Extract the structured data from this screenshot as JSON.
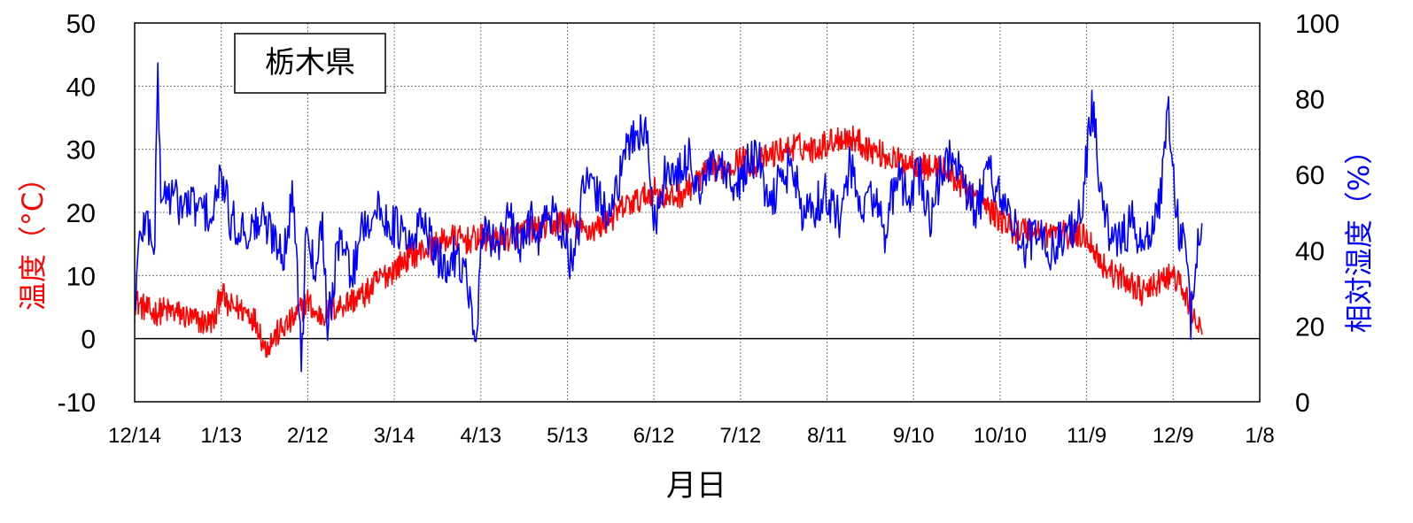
{
  "chart_data": {
    "type": "line",
    "title": "栃木県",
    "xlabel": "月日",
    "ylabel_left": "温度（°C）",
    "ylabel_right": "相対湿度（%）",
    "x_ticks": [
      "12/14",
      "1/13",
      "2/12",
      "3/14",
      "4/13",
      "5/13",
      "6/12",
      "7/12",
      "8/11",
      "9/10",
      "10/10",
      "11/9",
      "12/9",
      "1/8"
    ],
    "y_left_ticks": [
      "-10",
      "0",
      "10",
      "20",
      "30",
      "40",
      "50"
    ],
    "y_right_ticks": [
      "0",
      "20",
      "40",
      "60",
      "80",
      "100"
    ],
    "ylim_left": [
      -10,
      50
    ],
    "ylim_right": [
      0,
      100
    ],
    "xlim_days": [
      0,
      390
    ],
    "grid": true,
    "colors": {
      "temperature": "#ff0000",
      "humidity": "#0000ff",
      "zero_line": "#000000"
    },
    "series": [
      {
        "name": "温度",
        "axis": "left",
        "x_days": [
          0,
          3,
          6,
          10,
          15,
          20,
          25,
          28,
          30,
          32,
          35,
          40,
          43,
          45,
          50,
          55,
          60,
          63,
          66,
          70,
          75,
          80,
          85,
          90,
          95,
          100,
          105,
          110,
          115,
          120,
          125,
          130,
          135,
          140,
          145,
          150,
          155,
          160,
          165,
          170,
          175,
          180,
          185,
          190,
          195,
          200,
          205,
          210,
          215,
          220,
          225,
          230,
          235,
          240,
          245,
          250,
          255,
          260,
          265,
          270,
          275,
          280,
          285,
          290,
          295,
          300,
          305,
          310,
          315,
          320,
          325,
          330,
          335,
          340,
          345,
          350,
          355,
          360,
          363,
          366,
          368,
          370
        ],
        "values": [
          6,
          5,
          4,
          4.5,
          4,
          3,
          2.5,
          3,
          8,
          5,
          5,
          4,
          2,
          -1.5,
          1,
          3,
          6,
          3.5,
          4,
          5,
          6,
          7,
          9.5,
          11,
          13,
          14,
          15,
          16,
          15.5,
          16,
          15.5,
          16,
          17,
          17.5,
          18,
          19,
          17,
          17.5,
          19,
          21,
          22,
          23.5,
          22,
          23,
          25,
          27,
          27,
          28.5,
          27.5,
          29,
          30,
          30.5,
          30,
          31,
          32,
          31.5,
          30,
          29,
          28,
          28,
          27,
          27,
          25,
          23,
          21,
          19,
          17,
          17.5,
          16.5,
          17,
          16,
          16.5,
          12,
          10,
          9,
          7,
          9,
          10,
          8,
          5,
          3,
          1
        ]
      },
      {
        "name": "相対湿度",
        "axis": "right",
        "x_days": [
          0,
          2,
          4,
          7,
          8,
          9,
          12,
          16,
          20,
          25,
          27,
          30,
          33,
          36,
          40,
          44,
          48,
          52,
          55,
          58,
          59,
          60,
          62,
          65,
          67,
          70,
          73,
          75,
          78,
          80,
          84,
          88,
          92,
          96,
          100,
          104,
          108,
          112,
          116,
          118,
          120,
          122,
          126,
          130,
          134,
          138,
          140,
          144,
          148,
          152,
          156,
          160,
          164,
          168,
          172,
          176,
          178,
          180,
          182,
          184,
          188,
          192,
          196,
          200,
          204,
          208,
          212,
          216,
          220,
          224,
          228,
          232,
          236,
          240,
          244,
          248,
          252,
          256,
          260,
          264,
          268,
          272,
          276,
          280,
          284,
          288,
          292,
          296,
          300,
          304,
          308,
          312,
          316,
          320,
          324,
          328,
          332,
          336,
          340,
          344,
          346,
          348,
          350,
          352,
          354,
          356,
          358,
          360,
          362,
          364,
          366,
          368,
          370
        ],
        "values": [
          25,
          45,
          48,
          42,
          90,
          55,
          55,
          52,
          52,
          50,
          48,
          60,
          48,
          46,
          45,
          48,
          44,
          40,
          55,
          10,
          40,
          50,
          35,
          48,
          20,
          38,
          45,
          30,
          45,
          48,
          50,
          48,
          45,
          40,
          50,
          38,
          35,
          40,
          30,
          12,
          38,
          45,
          42,
          48,
          40,
          50,
          44,
          50,
          46,
          35,
          58,
          55,
          50,
          58,
          70,
          72,
          68,
          48,
          50,
          62,
          58,
          65,
          55,
          62,
          60,
          55,
          62,
          65,
          50,
          60,
          62,
          48,
          52,
          55,
          48,
          62,
          50,
          55,
          45,
          58,
          55,
          60,
          48,
          62,
          65,
          55,
          50,
          62,
          55,
          48,
          40,
          45,
          40,
          42,
          45,
          50,
          78,
          48,
          42,
          45,
          50,
          40,
          40,
          45,
          50,
          55,
          80,
          60,
          45,
          44,
          20,
          40,
          42
        ]
      }
    ]
  }
}
